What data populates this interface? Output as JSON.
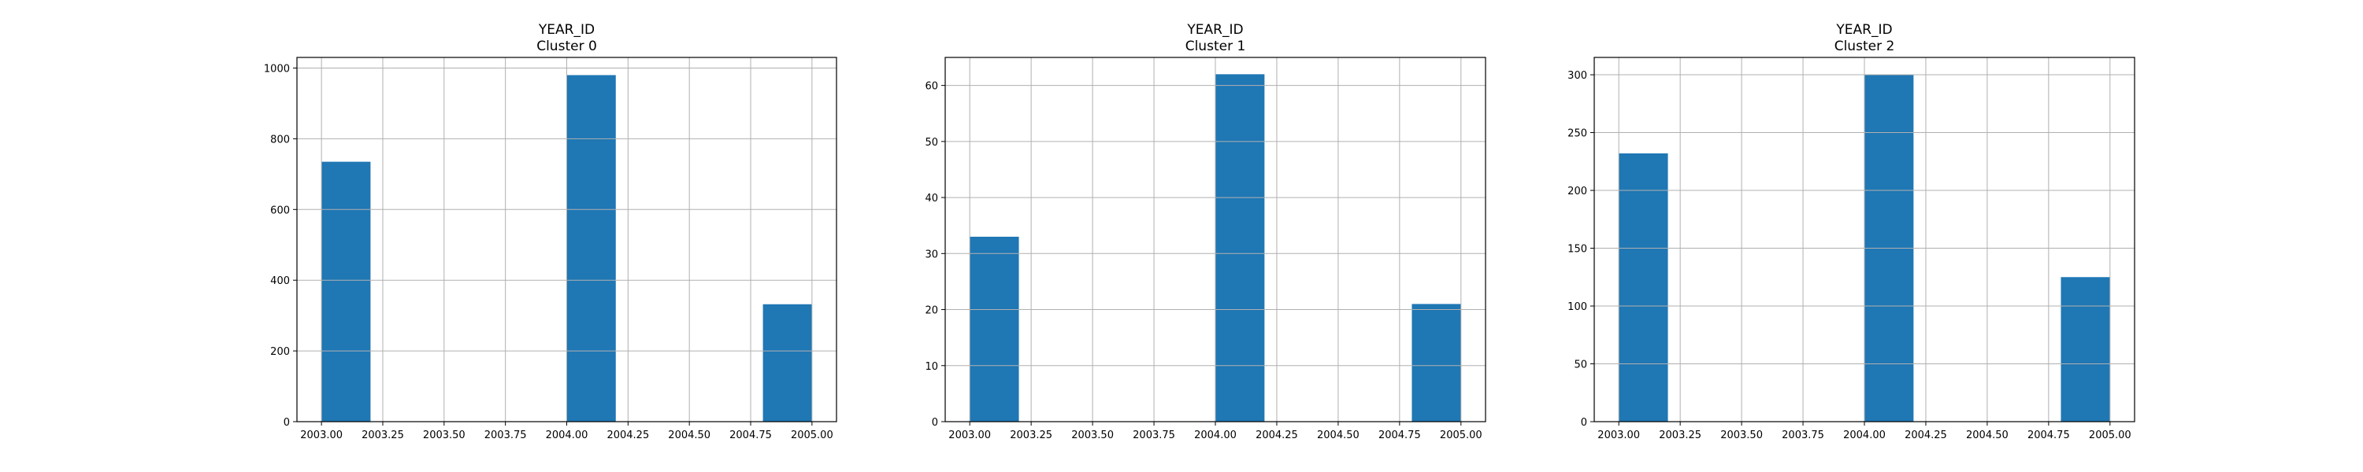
{
  "colors": {
    "bar": "#1f77b4",
    "grid": "#b0b0b0",
    "axes": "#000000"
  },
  "chart_data": [
    {
      "type": "bar",
      "title": "YEAR_ID",
      "subtitle": "Cluster 0",
      "xlabel": "",
      "ylabel": "",
      "xlim": [
        2002.9,
        2005.1
      ],
      "ylim": [
        0,
        1030
      ],
      "xticks": [
        2003.0,
        2003.25,
        2003.5,
        2003.75,
        2004.0,
        2004.25,
        2004.5,
        2004.75,
        2005.0
      ],
      "xtick_labels": [
        "2003.00",
        "2003.25",
        "2003.50",
        "2003.75",
        "2004.00",
        "2004.25",
        "2004.50",
        "2004.75",
        "2005.00"
      ],
      "yticks": [
        0,
        200,
        400,
        600,
        800,
        1000
      ],
      "ytick_labels": [
        "0",
        "200",
        "400",
        "600",
        "800",
        "1000"
      ],
      "grid": true,
      "bins": [
        {
          "x0": 2003.0,
          "x1": 2003.2,
          "value": 735
        },
        {
          "x0": 2004.0,
          "x1": 2004.2,
          "value": 980
        },
        {
          "x0": 2004.8,
          "x1": 2005.0,
          "value": 332
        }
      ]
    },
    {
      "type": "bar",
      "title": "YEAR_ID",
      "subtitle": "Cluster 1",
      "xlabel": "",
      "ylabel": "",
      "xlim": [
        2002.9,
        2005.1
      ],
      "ylim": [
        0,
        65
      ],
      "xticks": [
        2003.0,
        2003.25,
        2003.5,
        2003.75,
        2004.0,
        2004.25,
        2004.5,
        2004.75,
        2005.0
      ],
      "xtick_labels": [
        "2003.00",
        "2003.25",
        "2003.50",
        "2003.75",
        "2004.00",
        "2004.25",
        "2004.50",
        "2004.75",
        "2005.00"
      ],
      "yticks": [
        0,
        10,
        20,
        30,
        40,
        50,
        60
      ],
      "ytick_labels": [
        "0",
        "10",
        "20",
        "30",
        "40",
        "50",
        "60"
      ],
      "grid": true,
      "bins": [
        {
          "x0": 2003.0,
          "x1": 2003.2,
          "value": 33
        },
        {
          "x0": 2004.0,
          "x1": 2004.2,
          "value": 62
        },
        {
          "x0": 2004.8,
          "x1": 2005.0,
          "value": 21
        }
      ]
    },
    {
      "type": "bar",
      "title": "YEAR_ID",
      "subtitle": "Cluster 2",
      "xlabel": "",
      "ylabel": "",
      "xlim": [
        2002.9,
        2005.1
      ],
      "ylim": [
        0,
        315
      ],
      "xticks": [
        2003.0,
        2003.25,
        2003.5,
        2003.75,
        2004.0,
        2004.25,
        2004.5,
        2004.75,
        2005.0
      ],
      "xtick_labels": [
        "2003.00",
        "2003.25",
        "2003.50",
        "2003.75",
        "2004.00",
        "2004.25",
        "2004.50",
        "2004.75",
        "2005.00"
      ],
      "yticks": [
        0,
        50,
        100,
        150,
        200,
        250,
        300
      ],
      "ytick_labels": [
        "0",
        "50",
        "100",
        "150",
        "200",
        "250",
        "300"
      ],
      "grid": true,
      "bins": [
        {
          "x0": 2003.0,
          "x1": 2003.2,
          "value": 232
        },
        {
          "x0": 2004.0,
          "x1": 2004.2,
          "value": 300
        },
        {
          "x0": 2004.8,
          "x1": 2005.0,
          "value": 125
        }
      ]
    }
  ]
}
